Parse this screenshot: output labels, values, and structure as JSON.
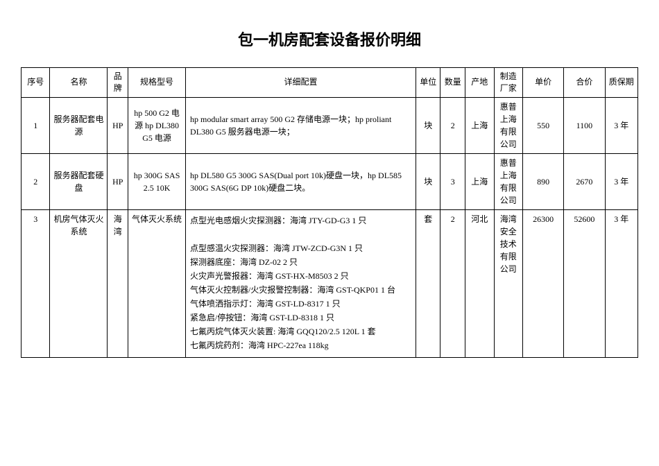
{
  "title": "包一机房配套设备报价明细",
  "headers": {
    "seq": "序号",
    "name": "名称",
    "brand": "品牌",
    "model": "规格型号",
    "detail": "详细配置",
    "unit": "单位",
    "qty": "数量",
    "origin": "产地",
    "mfr": "制造厂家",
    "price": "单价",
    "total": "合价",
    "warranty": "质保期"
  },
  "rows": [
    {
      "seq": "1",
      "name": "服务器配套电源",
      "brand": "HP",
      "model": "hp 500 G2 电源 hp DL380 G5 电源",
      "detail": "hp modular smart array 500 G2 存储电源一块；hp proliant DL380 G5 服务器电源一块；",
      "unit": "块",
      "qty": "2",
      "origin": "上海",
      "mfr": "惠普上海有限公司",
      "price": "550",
      "total": "1100",
      "warranty": "3 年",
      "valign": "middle"
    },
    {
      "seq": "2",
      "name": "服务器配套硬盘",
      "brand": "HP",
      "model": "hp 300G SAS 2.5 10K",
      "detail": "hp DL580 G5 300G SAS(Dual port 10k)硬盘一块，hp DL585 300G SAS(6G DP 10k)硬盘二块。",
      "unit": "块",
      "qty": "3",
      "origin": "上海",
      "mfr": "惠普上海有限公司",
      "price": "890",
      "total": "2670",
      "warranty": "3 年",
      "valign": "middle"
    },
    {
      "seq": "3",
      "name": "机房气体灭火系统",
      "brand": "海湾",
      "model": "气体灭火系统",
      "detail_lines": [
        "点型光电感烟火灾探测器：海湾 JTY-GD-G3 1 只",
        "",
        "点型感温火灾探测器：海湾 JTW-ZCD-G3N 1 只",
        "探测器底座：海湾 DZ-02 2 只",
        "火灾声光警报器：海湾 GST-HX-M8503 2 只",
        "气体灭火控制器/火灾报警控制器：海湾 GST-QKP01 1 台",
        "气体喷洒指示灯：海湾 GST-LD-8317 1 只",
        "紧急启/停按钮：海湾 GST-LD-8318 1 只",
        "七氟丙烷气体灭火装置: 海湾 GQQ120/2.5 120L 1 套",
        "七氟丙烷药剂：海湾 HPC-227ea 118kg"
      ],
      "unit": "套",
      "qty": "2",
      "origin": "河北",
      "mfr": "海湾安全技术有限公司",
      "price": "26300",
      "total": "52600",
      "warranty": "3 年",
      "valign": "top"
    }
  ]
}
